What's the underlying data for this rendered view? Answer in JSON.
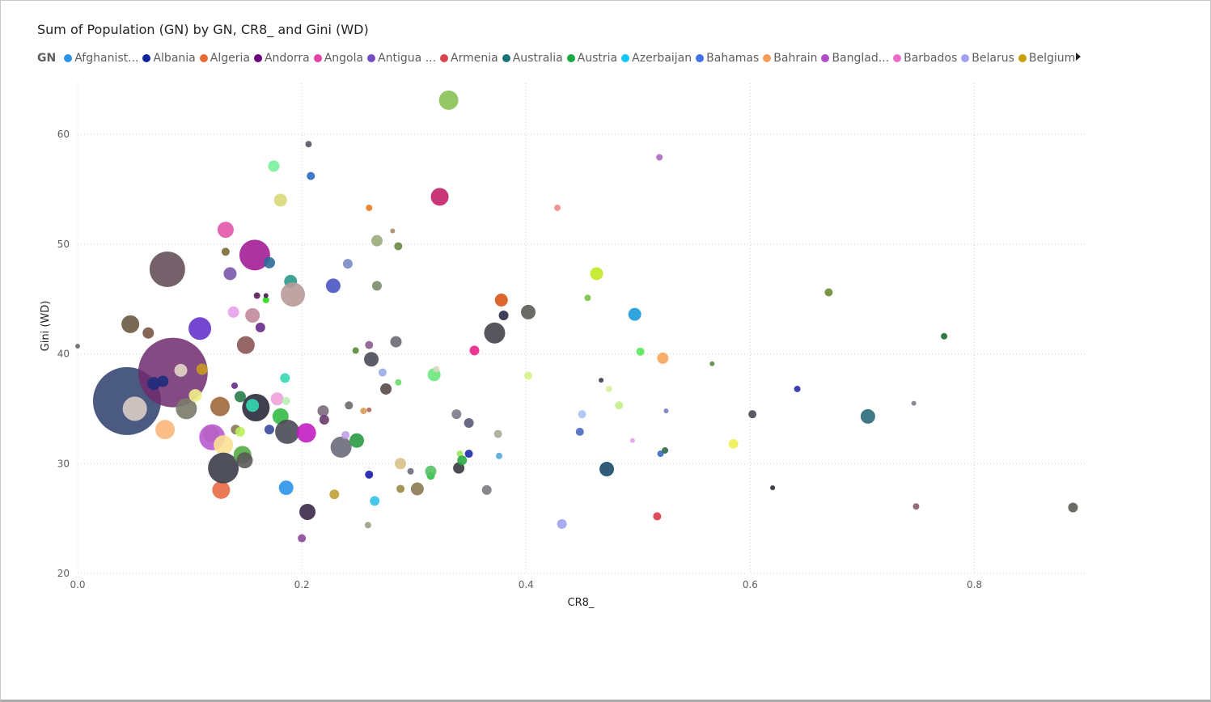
{
  "chart_data": {
    "type": "scatter",
    "title": "Sum of Population (GN) by GN, CR8_ and Gini (WD)",
    "xlabel": "CR8_",
    "ylabel": "Gini (WD)",
    "xlim": [
      0,
      0.9
    ],
    "ylim": [
      20,
      63
    ],
    "xticks": [
      "0.0",
      "0.2",
      "0.4",
      "0.6",
      "0.8"
    ],
    "xtick_values": [
      0,
      0.2,
      0.4,
      0.6,
      0.8
    ],
    "yticks": [
      "20",
      "30",
      "40",
      "50",
      "60"
    ],
    "ytick_values": [
      20,
      30,
      40,
      50,
      60
    ],
    "grid": true,
    "legend": {
      "title": "GN",
      "placement": "top",
      "items": [
        {
          "label": "Afghanist...",
          "color": "#2b93e8"
        },
        {
          "label": "Albania",
          "color": "#12239e"
        },
        {
          "label": "Algeria",
          "color": "#e66c37"
        },
        {
          "label": "Andorra",
          "color": "#6b007b"
        },
        {
          "label": "Angola",
          "color": "#e044a7"
        },
        {
          "label": "Antigua ...",
          "color": "#744ec2"
        },
        {
          "label": "Armenia",
          "color": "#d9454f"
        },
        {
          "label": "Australia",
          "color": "#197278"
        },
        {
          "label": "Austria",
          "color": "#1aab40"
        },
        {
          "label": "Azerbaijan",
          "color": "#15c6f4"
        },
        {
          "label": "Bahamas",
          "color": "#4172e9"
        },
        {
          "label": "Bahrain",
          "color": "#f59b5a"
        },
        {
          "label": "Banglad...",
          "color": "#b04dc9"
        },
        {
          "label": "Barbados",
          "color": "#ea6cc8"
        },
        {
          "label": "Belarus",
          "color": "#a4a0f4"
        },
        {
          "label": "Belgium",
          "color": "#c8a100"
        }
      ]
    },
    "points": [
      {
        "x": 0.044,
        "y": 35.7,
        "size": 42,
        "color": "#2c3d6b"
      },
      {
        "x": 0.085,
        "y": 38.3,
        "size": 43,
        "color": "#6e2a6e"
      },
      {
        "x": 0.08,
        "y": 47.7,
        "size": 22,
        "color": "#5c4550"
      },
      {
        "x": 0.051,
        "y": 35.0,
        "size": 15,
        "color": "#d9cdc7"
      },
      {
        "x": 0.092,
        "y": 38.5,
        "size": 8,
        "color": "#e2d6c6"
      },
      {
        "x": 0.0,
        "y": 40.7,
        "size": 3,
        "color": "#6b6b6b"
      },
      {
        "x": 0.047,
        "y": 42.7,
        "size": 11,
        "color": "#6a5a42"
      },
      {
        "x": 0.063,
        "y": 41.9,
        "size": 7,
        "color": "#7a5545"
      },
      {
        "x": 0.068,
        "y": 37.3,
        "size": 8,
        "color": "#1e2c7a"
      },
      {
        "x": 0.076,
        "y": 37.5,
        "size": 7,
        "color": "#1e2c7a"
      },
      {
        "x": 0.078,
        "y": 33.1,
        "size": 12,
        "color": "#fbb77b"
      },
      {
        "x": 0.097,
        "y": 35.0,
        "size": 13,
        "color": "#7a7a6a"
      },
      {
        "x": 0.105,
        "y": 36.2,
        "size": 8,
        "color": "#f2f08a"
      },
      {
        "x": 0.109,
        "y": 42.3,
        "size": 14,
        "color": "#6633cc"
      },
      {
        "x": 0.111,
        "y": 38.6,
        "size": 7,
        "color": "#c99a22"
      },
      {
        "x": 0.119,
        "y": 32.7,
        "size": 10,
        "color": "#a6a64c"
      },
      {
        "x": 0.12,
        "y": 32.4,
        "size": 16,
        "color": "#b95ad1"
      },
      {
        "x": 0.127,
        "y": 35.2,
        "size": 12,
        "color": "#a0683a"
      },
      {
        "x": 0.128,
        "y": 27.6,
        "size": 11,
        "color": "#e86a45"
      },
      {
        "x": 0.13,
        "y": 31.7,
        "size": 12,
        "color": "#fbe193"
      },
      {
        "x": 0.132,
        "y": 51.3,
        "size": 10,
        "color": "#e255a8"
      },
      {
        "x": 0.132,
        "y": 49.3,
        "size": 5,
        "color": "#7a6a33"
      },
      {
        "x": 0.136,
        "y": 47.3,
        "size": 8,
        "color": "#7a55aa"
      },
      {
        "x": 0.139,
        "y": 43.8,
        "size": 7,
        "color": "#e6a1ea"
      },
      {
        "x": 0.14,
        "y": 37.1,
        "size": 4,
        "color": "#6a2a8c"
      },
      {
        "x": 0.141,
        "y": 33.1,
        "size": 6,
        "color": "#8a7a55"
      },
      {
        "x": 0.145,
        "y": 32.9,
        "size": 6,
        "color": "#b9f05a"
      },
      {
        "x": 0.145,
        "y": 36.1,
        "size": 7,
        "color": "#2a7a4a"
      },
      {
        "x": 0.13,
        "y": 29.6,
        "size": 19,
        "color": "#3d3d4a"
      },
      {
        "x": 0.147,
        "y": 30.8,
        "size": 11,
        "color": "#55aa44"
      },
      {
        "x": 0.149,
        "y": 30.3,
        "size": 10,
        "color": "#5a5a5a"
      },
      {
        "x": 0.15,
        "y": 40.8,
        "size": 11,
        "color": "#8a5555"
      },
      {
        "x": 0.156,
        "y": 43.5,
        "size": 9,
        "color": "#c28a9a"
      },
      {
        "x": 0.158,
        "y": 49.0,
        "size": 19,
        "color": "#a31e97"
      },
      {
        "x": 0.159,
        "y": 35.1,
        "size": 17,
        "color": "#2a2a3a"
      },
      {
        "x": 0.156,
        "y": 35.3,
        "size": 8,
        "color": "#33d9b2"
      },
      {
        "x": 0.163,
        "y": 42.4,
        "size": 6,
        "color": "#6a2a8a"
      },
      {
        "x": 0.171,
        "y": 48.3,
        "size": 7,
        "color": "#2a6a9a"
      },
      {
        "x": 0.171,
        "y": 33.1,
        "size": 6,
        "color": "#3a4aa0"
      },
      {
        "x": 0.175,
        "y": 57.1,
        "size": 7,
        "color": "#7af09a"
      },
      {
        "x": 0.178,
        "y": 35.9,
        "size": 8,
        "color": "#f0a1d9"
      },
      {
        "x": 0.181,
        "y": 34.3,
        "size": 10,
        "color": "#33bb44"
      },
      {
        "x": 0.16,
        "y": 45.3,
        "size": 4,
        "color": "#551a55"
      },
      {
        "x": 0.168,
        "y": 44.9,
        "size": 4,
        "color": "#2ad91a"
      },
      {
        "x": 0.168,
        "y": 45.3,
        "size": 3,
        "color": "#4a1a4a"
      },
      {
        "x": 0.181,
        "y": 54.0,
        "size": 8,
        "color": "#d9d97a"
      },
      {
        "x": 0.185,
        "y": 37.8,
        "size": 6,
        "color": "#33d9b2"
      },
      {
        "x": 0.186,
        "y": 35.7,
        "size": 5,
        "color": "#b9f0b2"
      },
      {
        "x": 0.186,
        "y": 27.8,
        "size": 9,
        "color": "#2b93e8"
      },
      {
        "x": 0.187,
        "y": 32.9,
        "size": 15,
        "color": "#4a4a55"
      },
      {
        "x": 0.19,
        "y": 46.6,
        "size": 8,
        "color": "#2a9a8a"
      },
      {
        "x": 0.192,
        "y": 45.4,
        "size": 15,
        "color": "#b99a9a"
      },
      {
        "x": 0.2,
        "y": 23.2,
        "size": 5,
        "color": "#8a4a9a"
      },
      {
        "x": 0.205,
        "y": 25.6,
        "size": 10,
        "color": "#3a2a4a"
      },
      {
        "x": 0.204,
        "y": 32.8,
        "size": 12,
        "color": "#c21ec2"
      },
      {
        "x": 0.206,
        "y": 59.1,
        "size": 4,
        "color": "#555560"
      },
      {
        "x": 0.208,
        "y": 56.2,
        "size": 5,
        "color": "#2a6ac2"
      },
      {
        "x": 0.219,
        "y": 34.8,
        "size": 7,
        "color": "#7a6a7a"
      },
      {
        "x": 0.22,
        "y": 34.0,
        "size": 6,
        "color": "#6a3a6a"
      },
      {
        "x": 0.228,
        "y": 46.2,
        "size": 9,
        "color": "#4a55c2"
      },
      {
        "x": 0.229,
        "y": 27.2,
        "size": 6,
        "color": "#c2a033"
      },
      {
        "x": 0.235,
        "y": 31.5,
        "size": 13,
        "color": "#6a6a7a"
      },
      {
        "x": 0.239,
        "y": 32.6,
        "size": 5,
        "color": "#c2a1e8"
      },
      {
        "x": 0.241,
        "y": 48.2,
        "size": 6,
        "color": "#7a8ac2"
      },
      {
        "x": 0.242,
        "y": 35.3,
        "size": 5,
        "color": "#6a6a6a"
      },
      {
        "x": 0.248,
        "y": 40.3,
        "size": 4,
        "color": "#558a33"
      },
      {
        "x": 0.249,
        "y": 32.1,
        "size": 9,
        "color": "#2a9a44"
      },
      {
        "x": 0.255,
        "y": 34.8,
        "size": 4,
        "color": "#d99a55"
      },
      {
        "x": 0.26,
        "y": 29.0,
        "size": 5,
        "color": "#1a1aaa"
      },
      {
        "x": 0.26,
        "y": 34.9,
        "size": 3,
        "color": "#aa6a55"
      },
      {
        "x": 0.26,
        "y": 53.3,
        "size": 4,
        "color": "#e87a22"
      },
      {
        "x": 0.262,
        "y": 39.5,
        "size": 9,
        "color": "#4a4a55"
      },
      {
        "x": 0.26,
        "y": 40.8,
        "size": 5,
        "color": "#8a5a8a"
      },
      {
        "x": 0.259,
        "y": 24.4,
        "size": 4,
        "color": "#9aa08a"
      },
      {
        "x": 0.265,
        "y": 26.6,
        "size": 6,
        "color": "#33c2e8"
      },
      {
        "x": 0.267,
        "y": 50.3,
        "size": 7,
        "color": "#9aaa7a"
      },
      {
        "x": 0.267,
        "y": 46.2,
        "size": 6,
        "color": "#7a8a6a"
      },
      {
        "x": 0.272,
        "y": 38.3,
        "size": 5,
        "color": "#9aaae8"
      },
      {
        "x": 0.275,
        "y": 36.8,
        "size": 7,
        "color": "#5a4a4a"
      },
      {
        "x": 0.281,
        "y": 51.2,
        "size": 3,
        "color": "#aa8a6a"
      },
      {
        "x": 0.284,
        "y": 41.1,
        "size": 7,
        "color": "#6a6a75"
      },
      {
        "x": 0.286,
        "y": 37.4,
        "size": 4,
        "color": "#6ad96a"
      },
      {
        "x": 0.286,
        "y": 49.8,
        "size": 5,
        "color": "#6a8a44"
      },
      {
        "x": 0.288,
        "y": 30.0,
        "size": 7,
        "color": "#d9c28a"
      },
      {
        "x": 0.288,
        "y": 27.7,
        "size": 5,
        "color": "#9a8a44"
      },
      {
        "x": 0.297,
        "y": 29.3,
        "size": 4,
        "color": "#6a6a7a"
      },
      {
        "x": 0.303,
        "y": 27.7,
        "size": 8,
        "color": "#8a7a55"
      },
      {
        "x": 0.315,
        "y": 28.9,
        "size": 5,
        "color": "#2ac244"
      },
      {
        "x": 0.315,
        "y": 29.3,
        "size": 7,
        "color": "#55c266"
      },
      {
        "x": 0.318,
        "y": 38.1,
        "size": 8,
        "color": "#6ae87a"
      },
      {
        "x": 0.32,
        "y": 38.6,
        "size": 4,
        "color": "#d9d9c2"
      },
      {
        "x": 0.323,
        "y": 54.3,
        "size": 11,
        "color": "#c2226a"
      },
      {
        "x": 0.331,
        "y": 63.1,
        "size": 12,
        "color": "#88c255"
      },
      {
        "x": 0.338,
        "y": 34.5,
        "size": 6,
        "color": "#7a7a8a"
      },
      {
        "x": 0.34,
        "y": 29.6,
        "size": 7,
        "color": "#3a3a44"
      },
      {
        "x": 0.341,
        "y": 30.9,
        "size": 4,
        "color": "#9ae85a"
      },
      {
        "x": 0.343,
        "y": 30.3,
        "size": 6,
        "color": "#2aaa44"
      },
      {
        "x": 0.349,
        "y": 33.7,
        "size": 6,
        "color": "#5a5a7a"
      },
      {
        "x": 0.349,
        "y": 30.9,
        "size": 5,
        "color": "#1a2aaa"
      },
      {
        "x": 0.354,
        "y": 40.3,
        "size": 6,
        "color": "#e8228a"
      },
      {
        "x": 0.365,
        "y": 27.6,
        "size": 6,
        "color": "#7a7a80"
      },
      {
        "x": 0.372,
        "y": 41.9,
        "size": 13,
        "color": "#44444a"
      },
      {
        "x": 0.375,
        "y": 32.7,
        "size": 5,
        "color": "#aaaa9a"
      },
      {
        "x": 0.376,
        "y": 30.7,
        "size": 4,
        "color": "#55aad9"
      },
      {
        "x": 0.378,
        "y": 44.9,
        "size": 8,
        "color": "#d9551a"
      },
      {
        "x": 0.38,
        "y": 43.5,
        "size": 6,
        "color": "#2a2a4a"
      },
      {
        "x": 0.402,
        "y": 43.8,
        "size": 9,
        "color": "#5a5a55"
      },
      {
        "x": 0.402,
        "y": 38.0,
        "size": 5,
        "color": "#d9f08a"
      },
      {
        "x": 0.428,
        "y": 53.3,
        "size": 4,
        "color": "#f08a8a"
      },
      {
        "x": 0.432,
        "y": 24.5,
        "size": 6,
        "color": "#a1a1f0"
      },
      {
        "x": 0.448,
        "y": 32.9,
        "size": 5,
        "color": "#4a6ac2"
      },
      {
        "x": 0.45,
        "y": 34.5,
        "size": 5,
        "color": "#aac2f0"
      },
      {
        "x": 0.455,
        "y": 45.1,
        "size": 4,
        "color": "#7ac244"
      },
      {
        "x": 0.463,
        "y": 47.3,
        "size": 8,
        "color": "#c2e822"
      },
      {
        "x": 0.467,
        "y": 37.6,
        "size": 3,
        "color": "#3a3a4a"
      },
      {
        "x": 0.472,
        "y": 29.5,
        "size": 9,
        "color": "#1a4a6a"
      },
      {
        "x": 0.474,
        "y": 36.8,
        "size": 4,
        "color": "#d9f0a1"
      },
      {
        "x": 0.483,
        "y": 35.3,
        "size": 5,
        "color": "#c2f08a"
      },
      {
        "x": 0.495,
        "y": 32.1,
        "size": 3,
        "color": "#e8a1e8"
      },
      {
        "x": 0.497,
        "y": 43.6,
        "size": 8,
        "color": "#1a9ad9"
      },
      {
        "x": 0.502,
        "y": 40.2,
        "size": 5,
        "color": "#5ae85a"
      },
      {
        "x": 0.517,
        "y": 25.2,
        "size": 5,
        "color": "#d93a4a"
      },
      {
        "x": 0.519,
        "y": 57.9,
        "size": 4,
        "color": "#aa6ac2"
      },
      {
        "x": 0.52,
        "y": 30.9,
        "size": 4,
        "color": "#3a6ac2"
      },
      {
        "x": 0.522,
        "y": 39.6,
        "size": 7,
        "color": "#f5a55a"
      },
      {
        "x": 0.524,
        "y": 31.2,
        "size": 4,
        "color": "#2a6a4a"
      },
      {
        "x": 0.525,
        "y": 34.8,
        "size": 3,
        "color": "#7a7ac2"
      },
      {
        "x": 0.566,
        "y": 39.1,
        "size": 3,
        "color": "#558a44"
      },
      {
        "x": 0.585,
        "y": 31.8,
        "size": 6,
        "color": "#f0f055"
      },
      {
        "x": 0.602,
        "y": 34.5,
        "size": 5,
        "color": "#4a4a55"
      },
      {
        "x": 0.62,
        "y": 27.8,
        "size": 3,
        "color": "#2a2a3a"
      },
      {
        "x": 0.642,
        "y": 36.8,
        "size": 4,
        "color": "#2a2aaa"
      },
      {
        "x": 0.67,
        "y": 45.6,
        "size": 5,
        "color": "#6a8a33"
      },
      {
        "x": 0.705,
        "y": 34.3,
        "size": 9,
        "color": "#2a6a7a"
      },
      {
        "x": 0.746,
        "y": 35.5,
        "size": 3,
        "color": "#7a7a8a"
      },
      {
        "x": 0.748,
        "y": 26.1,
        "size": 4,
        "color": "#8a5a6a"
      },
      {
        "x": 0.773,
        "y": 41.6,
        "size": 4,
        "color": "#1a6a33"
      },
      {
        "x": 0.888,
        "y": 26.0,
        "size": 6,
        "color": "#5a5a55"
      }
    ]
  }
}
